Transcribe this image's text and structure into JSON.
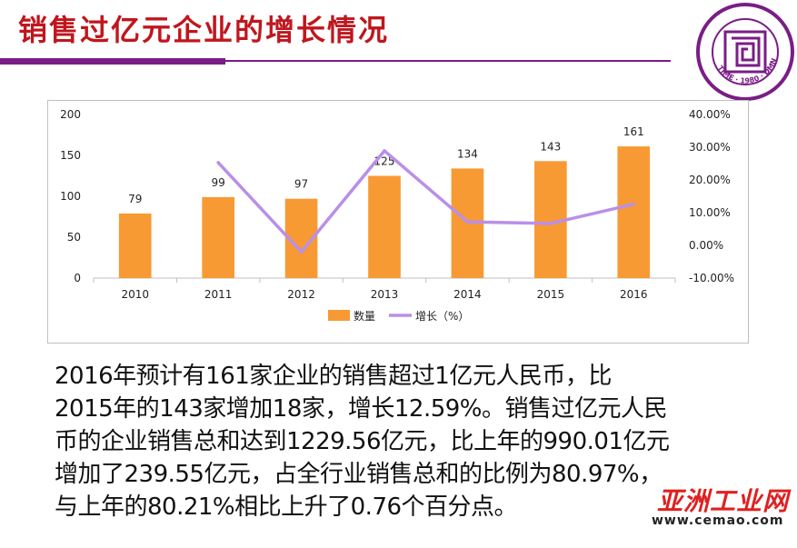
{
  "slide": {
    "title": "销售过亿元企业的增长情况",
    "logo_text": "TIME · 1980 · DMN",
    "body_lines": [
      "2016年预计有161家企业的销售超过1亿元人民币，比",
      "2015年的143家增加18家，增长12.59%。销售过亿元人民",
      "币的企业销售总和达到1229.56亿元，比上年的990.01亿元",
      "增加了239.55亿元，占全行业销售总和的比例为80.97%，",
      "与上年的80.21%相比上升了0.76个百分点。"
    ],
    "watermark": "亚洲工业网",
    "watermark_url": "www.cemao.com"
  },
  "colors": {
    "bar": "#f79a34",
    "line": "#b98fe8",
    "title": "#c0161d",
    "accent": "#7a1d86"
  },
  "chart_data": {
    "type": "bar",
    "categories": [
      "2010",
      "2011",
      "2012",
      "2013",
      "2014",
      "2015",
      "2016"
    ],
    "series": [
      {
        "name": "数量",
        "type": "bar",
        "axis": "left",
        "values": [
          79,
          99,
          97,
          125,
          134,
          143,
          161
        ],
        "data_labels": [
          "79",
          "99",
          "97",
          "125",
          "134",
          "143",
          "161"
        ]
      },
      {
        "name": "增长（%）",
        "type": "line",
        "axis": "right",
        "values": [
          null,
          25.3,
          -2.0,
          28.9,
          7.2,
          6.7,
          12.59
        ]
      }
    ],
    "ylim_left": [
      0,
      200
    ],
    "yticks_left": [
      "0",
      "50",
      "100",
      "150",
      "200"
    ],
    "ylim_right": [
      -10,
      40
    ],
    "yticks_right": [
      "-10.00%",
      "0.00%",
      "10.00%",
      "20.00%",
      "30.00%",
      "40.00%"
    ],
    "legend": [
      "数量",
      "增长（%）"
    ],
    "legend_position": "bottom",
    "grid": false
  }
}
